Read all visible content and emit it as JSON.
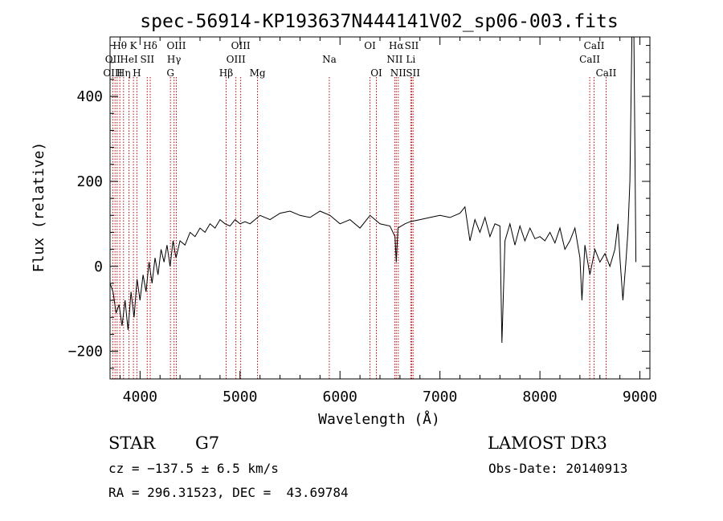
{
  "chart_data": {
    "type": "line",
    "title": "spec-56914-KP193637N444141V02_sp06-003.fits",
    "xlabel": "Wavelength (Å)",
    "ylabel": "Flux (relative)",
    "xlim": [
      3700,
      9100
    ],
    "ylim": [
      -265,
      540
    ],
    "xticks": [
      4000,
      5000,
      6000,
      7000,
      8000,
      9000
    ],
    "yticks": [
      -200,
      0,
      200,
      400
    ],
    "xtick_labels": [
      "4000",
      "5000",
      "6000",
      "7000",
      "8000",
      "9000"
    ],
    "ytick_labels": [
      "−200",
      "0",
      "200",
      "400"
    ],
    "series": [
      {
        "name": "Flux",
        "x": [
          3700,
          3730,
          3760,
          3790,
          3820,
          3850,
          3880,
          3910,
          3940,
          3970,
          4000,
          4030,
          4060,
          4090,
          4120,
          4150,
          4180,
          4210,
          4240,
          4270,
          4300,
          4330,
          4360,
          4400,
          4450,
          4500,
          4550,
          4600,
          4650,
          4700,
          4750,
          4800,
          4850,
          4900,
          4950,
          5000,
          5050,
          5100,
          5150,
          5200,
          5300,
          5400,
          5500,
          5600,
          5700,
          5800,
          5900,
          6000,
          6100,
          6200,
          6300,
          6400,
          6500,
          6550,
          6563,
          6580,
          6650,
          6700,
          6800,
          6900,
          7000,
          7100,
          7200,
          7250,
          7300,
          7350,
          7400,
          7450,
          7500,
          7550,
          7600,
          7620,
          7650,
          7700,
          7750,
          7800,
          7850,
          7900,
          7950,
          8000,
          8050,
          8100,
          8150,
          8200,
          8250,
          8300,
          8350,
          8400,
          8420,
          8450,
          8500,
          8550,
          8600,
          8650,
          8700,
          8750,
          8780,
          8800,
          8830,
          8860,
          8880,
          8900,
          8920,
          8940,
          8960
        ],
        "y": [
          -40,
          -60,
          -110,
          -90,
          -140,
          -80,
          -150,
          -60,
          -120,
          -30,
          -80,
          -20,
          -60,
          10,
          -40,
          20,
          -20,
          40,
          10,
          50,
          0,
          60,
          20,
          60,
          50,
          80,
          70,
          90,
          80,
          100,
          90,
          110,
          100,
          95,
          110,
          100,
          105,
          100,
          110,
          120,
          110,
          125,
          130,
          120,
          115,
          130,
          120,
          100,
          110,
          90,
          120,
          100,
          95,
          70,
          10,
          90,
          100,
          105,
          110,
          115,
          120,
          115,
          125,
          140,
          60,
          110,
          80,
          115,
          70,
          100,
          95,
          -180,
          60,
          100,
          50,
          95,
          60,
          90,
          65,
          70,
          60,
          80,
          55,
          90,
          40,
          60,
          90,
          20,
          -80,
          50,
          -20,
          40,
          10,
          30,
          0,
          40,
          100,
          20,
          -80,
          10,
          80,
          200,
          540,
          540,
          10
        ]
      }
    ],
    "line_labels": [
      {
        "text": "Hθ",
        "wavelength": 3798,
        "row": 0
      },
      {
        "text": "K",
        "wavelength": 3934,
        "row": 0
      },
      {
        "text": "Hδ",
        "wavelength": 4102,
        "row": 0
      },
      {
        "text": "OIII",
        "wavelength": 4363,
        "row": 0
      },
      {
        "text": "OIII",
        "wavelength": 5007,
        "row": 0
      },
      {
        "text": "OI",
        "wavelength": 6300,
        "row": 0
      },
      {
        "text": "Hα",
        "wavelength": 6563,
        "row": 0
      },
      {
        "text": "SII",
        "wavelength": 6717,
        "row": 0
      },
      {
        "text": "CaII",
        "wavelength": 8542,
        "row": 0
      },
      {
        "text": "OII",
        "wavelength": 3727,
        "row": 1
      },
      {
        "text": "HeI",
        "wavelength": 3889,
        "row": 1
      },
      {
        "text": "SII",
        "wavelength": 4072,
        "row": 1
      },
      {
        "text": "Hγ",
        "wavelength": 4340,
        "row": 1
      },
      {
        "text": "OIII",
        "wavelength": 4959,
        "row": 1
      },
      {
        "text": "Na",
        "wavelength": 5893,
        "row": 1
      },
      {
        "text": "NII",
        "wavelength": 6548,
        "row": 1
      },
      {
        "text": "Li",
        "wavelength": 6708,
        "row": 1
      },
      {
        "text": "CaII",
        "wavelength": 8498,
        "row": 1
      },
      {
        "text": "OIII",
        "wavelength": 3727,
        "row": 2
      },
      {
        "text": "Hη",
        "wavelength": 3835,
        "row": 2
      },
      {
        "text": "H",
        "wavelength": 3968,
        "row": 2
      },
      {
        "text": "G",
        "wavelength": 4304,
        "row": 2
      },
      {
        "text": "Hβ",
        "wavelength": 4861,
        "row": 2
      },
      {
        "text": "Mg",
        "wavelength": 5175,
        "row": 2
      },
      {
        "text": "OI",
        "wavelength": 6364,
        "row": 2
      },
      {
        "text": "NII",
        "wavelength": 6583,
        "row": 2
      },
      {
        "text": "SII",
        "wavelength": 6731,
        "row": 2
      },
      {
        "text": "CaII",
        "wavelength": 8662,
        "row": 2
      }
    ],
    "line_wavelengths": [
      3727,
      3750,
      3771,
      3798,
      3835,
      3889,
      3934,
      3968,
      4072,
      4102,
      4304,
      4340,
      4363,
      4861,
      4959,
      5007,
      5175,
      5893,
      6300,
      6364,
      6548,
      6563,
      6583,
      6708,
      6717,
      6731,
      8498,
      8542,
      8662
    ]
  },
  "info": {
    "object_class": "STAR",
    "subclass": "G7",
    "survey": "LAMOST DR3",
    "redshift": "cz = −137.5 ± 6.5 km/s",
    "obs_date": "Obs-Date: 20140913",
    "coords": "RA = 296.31523, DEC =  43.69784"
  }
}
